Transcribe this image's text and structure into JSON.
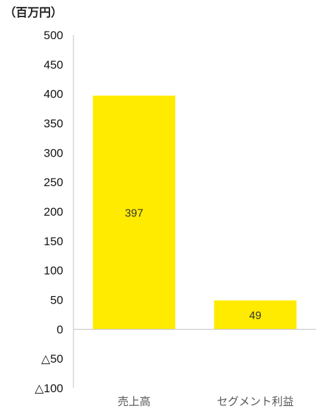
{
  "chart_data": {
    "type": "bar",
    "unit_label": "（百万円）",
    "categories": [
      "売上高",
      "セグメント利益"
    ],
    "values": [
      397,
      49
    ],
    "data_labels": [
      "397",
      "49"
    ],
    "ylim": [
      -100,
      500
    ],
    "yticks": [
      500,
      450,
      400,
      350,
      300,
      250,
      200,
      150,
      100,
      50,
      0,
      -50,
      -100
    ],
    "ytick_labels": [
      "500",
      "450",
      "400",
      "350",
      "300",
      "250",
      "200",
      "150",
      "100",
      "50",
      "0",
      "△50",
      "△100"
    ],
    "grid": false,
    "legend": "none",
    "colors": {
      "bar": "#FFEB00",
      "axis": "#BFBFBF"
    }
  }
}
